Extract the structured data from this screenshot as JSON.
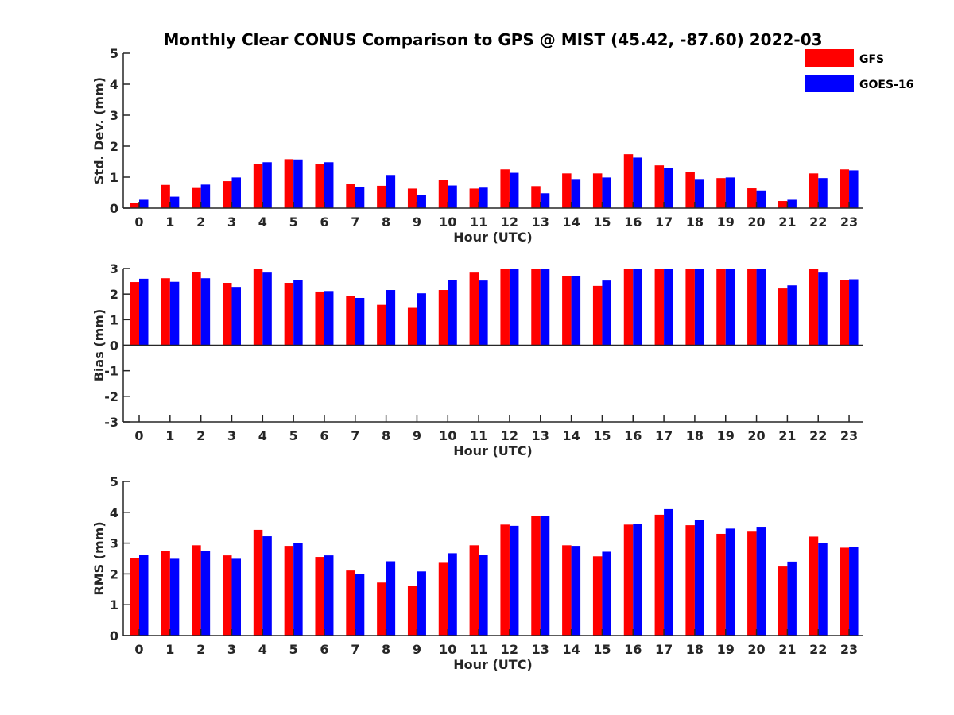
{
  "title": "Monthly Clear CONUS Comparison to GPS @ MIST (45.42, -87.60) 2022-03",
  "legend": [
    {
      "name": "GFS",
      "color": "#ff0000"
    },
    {
      "name": "GOES-16",
      "color": "#0000ff"
    }
  ],
  "chart_data": [
    {
      "type": "bar",
      "xlabel": "Hour (UTC)",
      "ylabel": "Std. Dev. (mm)",
      "ylim": [
        0,
        5
      ],
      "yticks": [
        0,
        1,
        2,
        3,
        4,
        5
      ],
      "categories": [
        "0",
        "1",
        "2",
        "3",
        "4",
        "5",
        "6",
        "7",
        "8",
        "9",
        "10",
        "11",
        "12",
        "13",
        "14",
        "15",
        "16",
        "17",
        "18",
        "19",
        "20",
        "21",
        "22",
        "23"
      ],
      "series": [
        {
          "name": "GFS",
          "color": "#ff0000",
          "values": [
            0.17,
            0.75,
            0.65,
            0.87,
            1.42,
            1.58,
            1.41,
            0.78,
            0.72,
            0.63,
            0.92,
            0.63,
            1.25,
            0.71,
            1.12,
            1.12,
            1.74,
            1.38,
            1.17,
            0.97,
            0.64,
            0.23,
            1.12,
            1.25
          ]
        },
        {
          "name": "GOES-16",
          "color": "#0000ff",
          "values": [
            0.27,
            0.37,
            0.76,
            0.99,
            1.48,
            1.57,
            1.48,
            0.68,
            1.07,
            0.43,
            0.73,
            0.66,
            1.14,
            0.48,
            0.94,
            0.99,
            1.63,
            1.29,
            0.94,
            0.99,
            0.57,
            0.27,
            0.97,
            1.22
          ]
        }
      ]
    },
    {
      "type": "bar",
      "xlabel": "Hour (UTC)",
      "ylabel": "Bias (mm)",
      "ylim": [
        -3,
        3
      ],
      "yticks": [
        -3,
        -2,
        -1,
        0,
        1,
        2,
        3
      ],
      "categories": [
        "0",
        "1",
        "2",
        "3",
        "4",
        "5",
        "6",
        "7",
        "8",
        "9",
        "10",
        "11",
        "12",
        "13",
        "14",
        "15",
        "16",
        "17",
        "18",
        "19",
        "20",
        "21",
        "22",
        "23"
      ],
      "series": [
        {
          "name": "GFS",
          "color": "#ff0000",
          "values": [
            2.47,
            2.62,
            2.86,
            2.44,
            3.0,
            2.44,
            2.1,
            1.94,
            1.58,
            1.46,
            2.16,
            2.84,
            3.0,
            3.0,
            2.7,
            2.32,
            3.0,
            3.0,
            3.0,
            3.0,
            3.0,
            2.22,
            3.0,
            2.56
          ]
        },
        {
          "name": "GOES-16",
          "color": "#0000ff",
          "values": [
            2.6,
            2.48,
            2.62,
            2.28,
            2.84,
            2.56,
            2.12,
            1.85,
            2.16,
            2.03,
            2.56,
            2.53,
            3.0,
            3.0,
            2.7,
            2.53,
            3.0,
            3.0,
            3.0,
            3.0,
            3.0,
            2.34,
            2.84,
            2.58
          ]
        }
      ]
    },
    {
      "type": "bar",
      "xlabel": "Hour (UTC)",
      "ylabel": "RMS (mm)",
      "ylim": [
        0,
        5
      ],
      "yticks": [
        0,
        1,
        2,
        3,
        4,
        5
      ],
      "categories": [
        "0",
        "1",
        "2",
        "3",
        "4",
        "5",
        "6",
        "7",
        "8",
        "9",
        "10",
        "11",
        "12",
        "13",
        "14",
        "15",
        "16",
        "17",
        "18",
        "19",
        "20",
        "21",
        "22",
        "23"
      ],
      "series": [
        {
          "name": "GFS",
          "color": "#ff0000",
          "values": [
            2.5,
            2.75,
            2.93,
            2.6,
            3.43,
            2.91,
            2.55,
            2.11,
            1.72,
            1.62,
            2.36,
            2.93,
            3.6,
            3.89,
            2.93,
            2.57,
            3.6,
            3.92,
            3.58,
            3.3,
            3.37,
            2.24,
            3.21,
            2.85
          ]
        },
        {
          "name": "GOES-16",
          "color": "#0000ff",
          "values": [
            2.62,
            2.49,
            2.75,
            2.49,
            3.22,
            3.0,
            2.6,
            2.01,
            2.41,
            2.08,
            2.67,
            2.62,
            3.56,
            3.89,
            2.91,
            2.72,
            3.63,
            4.1,
            3.76,
            3.47,
            3.53,
            2.4,
            3.0,
            2.88
          ]
        }
      ]
    }
  ]
}
